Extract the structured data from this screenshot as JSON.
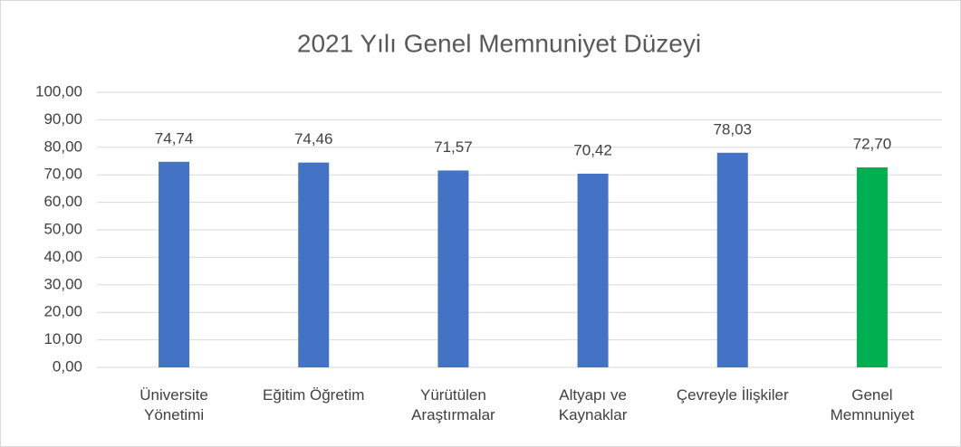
{
  "chart_data": {
    "type": "bar",
    "title": "2021 Yılı Genel Memnuniyet Düzeyi",
    "categories": [
      "Üniversite Yönetimi",
      "Eğitim Öğretim",
      "Yürütülen Araştırmalar",
      "Altyapı ve Kaynaklar",
      "Çevreyle İlişkiler",
      "Genel Memnuniyet"
    ],
    "values": [
      74.74,
      74.46,
      71.57,
      70.42,
      78.03,
      72.7
    ],
    "value_labels": [
      "74,74",
      "74,46",
      "71,57",
      "70,42",
      "78,03",
      "72,70"
    ],
    "colors": [
      "#4472c4",
      "#4472c4",
      "#4472c4",
      "#4472c4",
      "#4472c4",
      "#00b050"
    ],
    "ylim": [
      0,
      100
    ],
    "yticks": [
      {
        "value": 0,
        "label": "0,00"
      },
      {
        "value": 10,
        "label": "10,00"
      },
      {
        "value": 20,
        "label": "20,00"
      },
      {
        "value": 30,
        "label": "30,00"
      },
      {
        "value": 40,
        "label": "40,00"
      },
      {
        "value": 50,
        "label": "50,00"
      },
      {
        "value": 60,
        "label": "60,00"
      },
      {
        "value": 70,
        "label": "70,00"
      },
      {
        "value": 80,
        "label": "80,00"
      },
      {
        "value": 90,
        "label": "90,00"
      },
      {
        "value": 100,
        "label": "100,00"
      }
    ],
    "grid": true
  }
}
